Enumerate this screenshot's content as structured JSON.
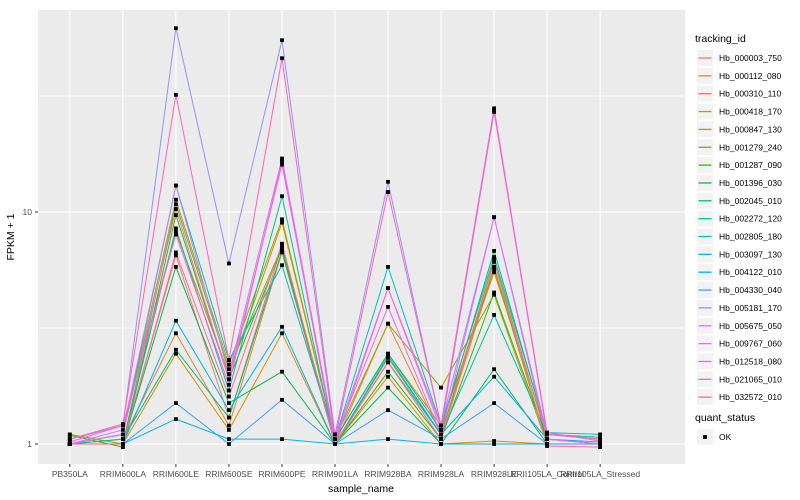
{
  "chart_data": {
    "type": "line",
    "title": "",
    "xlabel": "sample_name",
    "ylabel": "FPKM + 1",
    "y_scale": "log10",
    "y_axis_range": [
      0.82,
      74
    ],
    "y_major_ticks": [
      1,
      10
    ],
    "y_major_tick_labels": [
      "1",
      "10"
    ],
    "y_minor_ticks": [
      3.162,
      31.623
    ],
    "grid": "on",
    "panel_bg": "#EBEBEB",
    "grid_color": "#FFFFFF",
    "point_color": "#000000",
    "point_shape": "filled-square",
    "legend_position": "right",
    "categories": [
      "PB350LA",
      "RRIM600LA",
      "RRIM600LE",
      "RRIM600SE",
      "RRIM600PE",
      "RRIM901LA",
      "RRIM928BA",
      "RRIM928LA",
      "RRIM928LE",
      "RRII105LA_Control",
      "RRII105LA_Stressed"
    ],
    "series": [
      {
        "name": "Hb_000003_750",
        "color": "#F8766D",
        "values": [
          1.0,
          1.0,
          6.5,
          1.3,
          7.2,
          1.0,
          2.25,
          1.05,
          5.7,
          1.0,
          1.0
        ]
      },
      {
        "name": "Hb_000112_080",
        "color": "#EA8331",
        "values": [
          1.0,
          1.05,
          3.0,
          1.2,
          6.7,
          1.0,
          3.3,
          1.1,
          6.2,
          1.05,
          1.0
        ]
      },
      {
        "name": "Hb_000310_110",
        "color": "#D89000",
        "values": [
          1.0,
          1.0,
          2.45,
          1.15,
          3.0,
          1.0,
          1.95,
          1.0,
          1.03,
          1.0,
          1.0
        ]
      },
      {
        "name": "Hb_000418_170",
        "color": "#C09B00",
        "values": [
          1.05,
          1.2,
          8.2,
          2.0,
          9.0,
          1.05,
          2.45,
          1.2,
          5.5,
          1.1,
          1.05
        ]
      },
      {
        "name": "Hb_000847_130",
        "color": "#A3A500",
        "values": [
          1.0,
          1.1,
          11.3,
          2.2,
          9.3,
          1.05,
          3.3,
          1.75,
          4.4,
          1.0,
          1.0
        ]
      },
      {
        "name": "Hb_001279_240",
        "color": "#7CAE00",
        "values": [
          1.1,
          1.0,
          10.8,
          2.1,
          7.1,
          1.0,
          2.35,
          1.1,
          5.8,
          1.0,
          1.0
        ]
      },
      {
        "name": "Hb_001287_090",
        "color": "#39B600",
        "values": [
          1.09,
          0.97,
          9.7,
          1.9,
          7.0,
          1.0,
          2.05,
          1.05,
          4.5,
          1.05,
          1.0
        ]
      },
      {
        "name": "Hb_001396_030",
        "color": "#00BB4E",
        "values": [
          1.0,
          1.0,
          5.8,
          1.5,
          2.05,
          1.0,
          1.75,
          1.0,
          2.1,
          1.0,
          1.0
        ]
      },
      {
        "name": "Hb_002045_010",
        "color": "#00BF7D",
        "values": [
          1.0,
          1.05,
          2.55,
          1.3,
          6.8,
          1.05,
          2.45,
          1.15,
          6.8,
          1.1,
          1.07
        ]
      },
      {
        "name": "Hb_002272_120",
        "color": "#00C1A3",
        "values": [
          1.0,
          1.0,
          8.5,
          1.7,
          11.7,
          1.0,
          2.25,
          1.1,
          3.6,
          1.1,
          1.05
        ]
      },
      {
        "name": "Hb_002805_180",
        "color": "#00BFC4",
        "values": [
          1.0,
          1.1,
          13.0,
          2.3,
          5.9,
          1.05,
          5.8,
          1.2,
          6.4,
          1.12,
          1.1
        ]
      },
      {
        "name": "Hb_003097_130",
        "color": "#00BAE0",
        "values": [
          1.0,
          1.0,
          1.28,
          1.05,
          1.05,
          1.0,
          1.05,
          1.0,
          1.0,
          1.0,
          1.0
        ]
      },
      {
        "name": "Hb_004122_010",
        "color": "#00B0F6",
        "values": [
          1.0,
          1.0,
          3.4,
          1.4,
          3.2,
          1.0,
          2.4,
          1.1,
          1.95,
          1.05,
          1.02
        ]
      },
      {
        "name": "Hb_004330_040",
        "color": "#35A2FF",
        "values": [
          1.0,
          1.0,
          1.5,
          1.0,
          1.55,
          1.0,
          1.4,
          1.05,
          1.5,
          1.0,
          1.0
        ]
      },
      {
        "name": "Hb_005181_170",
        "color": "#9590FF",
        "values": [
          1.05,
          1.2,
          62.0,
          6.0,
          55.0,
          1.1,
          13.5,
          1.2,
          9.5,
          1.1,
          1.05
        ]
      },
      {
        "name": "Hb_005675_050",
        "color": "#C77CFF",
        "values": [
          1.0,
          1.15,
          13.0,
          2.0,
          17.0,
          1.05,
          4.7,
          1.15,
          27.0,
          1.1,
          1.05
        ]
      },
      {
        "name": "Hb_009767_060",
        "color": "#E76BF3",
        "values": [
          1.0,
          1.1,
          10.3,
          1.9,
          16.0,
          1.05,
          3.9,
          1.1,
          9.5,
          1.05,
          1.0
        ]
      },
      {
        "name": "Hb_012518_080",
        "color": "#FA62DB",
        "values": [
          1.02,
          1.2,
          8.0,
          1.8,
          16.5,
          1.0,
          4.7,
          1.2,
          27.5,
          1.12,
          1.03
        ]
      },
      {
        "name": "Hb_021065_010",
        "color": "#FF62BC",
        "values": [
          1.05,
          1.22,
          32.0,
          2.3,
          46.0,
          1.05,
          12.2,
          1.2,
          28.0,
          1.1,
          1.05
        ]
      },
      {
        "name": "Hb_032572_010",
        "color": "#FF6A98",
        "values": [
          1.0,
          1.0,
          6.7,
          1.6,
          7.3,
          1.0,
          2.25,
          1.05,
          6.1,
          0.98,
          0.97
        ]
      }
    ],
    "legend": {
      "color_legend_title": "tracking_id",
      "shape_legend_title": "quant_status",
      "shape_legend_entries": [
        {
          "label": "OK",
          "marker": "black-square"
        }
      ]
    }
  }
}
